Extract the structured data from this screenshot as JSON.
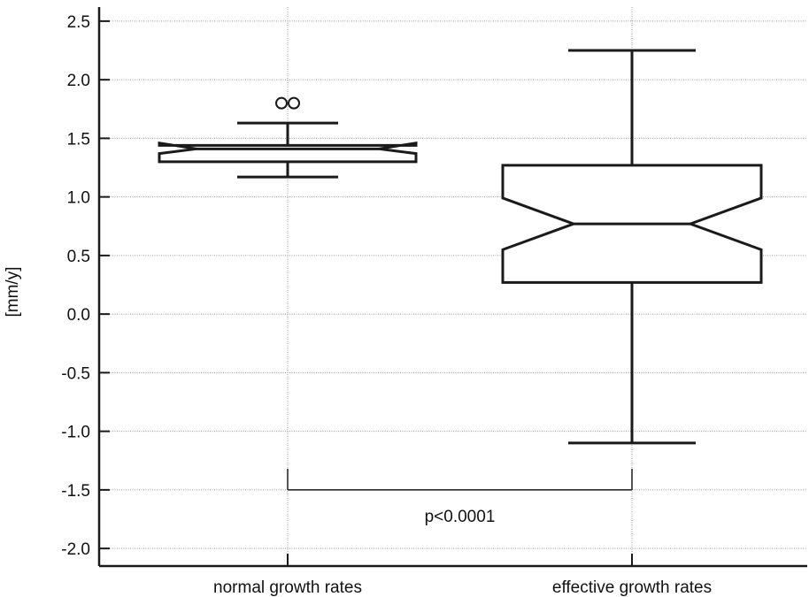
{
  "chart_data": {
    "type": "box",
    "title": "",
    "xlabel": "",
    "ylabel": "[mm/y]",
    "ylim": [
      -2.15,
      2.62
    ],
    "yticks": [
      -2.0,
      -1.5,
      -1.0,
      -0.5,
      0.0,
      0.5,
      1.0,
      1.5,
      2.0,
      2.5
    ],
    "ytick_labels": [
      "-2.0",
      "-1.5",
      "-1.0",
      "-0.5",
      "0.0",
      "0.5",
      "1.0",
      "1.5",
      "2.0",
      "2.5"
    ],
    "grid": true,
    "notched": true,
    "categories": [
      "normal growth rates",
      "effective growth rates"
    ],
    "boxes": [
      {
        "category": "normal growth rates",
        "whisker_low": 1.17,
        "q1": 1.3,
        "notch_low": 1.37,
        "median": 1.41,
        "notch_high": 1.46,
        "q3": 1.44,
        "whisker_high": 1.63,
        "outliers": [
          1.8,
          1.8
        ]
      },
      {
        "category": "effective growth rates",
        "whisker_low": -1.1,
        "q1": 0.27,
        "notch_low": 0.55,
        "median": 0.77,
        "notch_high": 0.99,
        "q3": 1.27,
        "whisker_high": 2.25,
        "outliers": []
      }
    ],
    "annotations": [
      {
        "text": "p<0.0001",
        "bracket_y": -1.5,
        "bracket_top": -1.32,
        "between": [
          "normal growth rates",
          "effective growth rates"
        ]
      }
    ],
    "colors": {
      "line": "#1a1a1a",
      "grid": "#9a9a9a",
      "box_fill": "#ffffff"
    }
  }
}
